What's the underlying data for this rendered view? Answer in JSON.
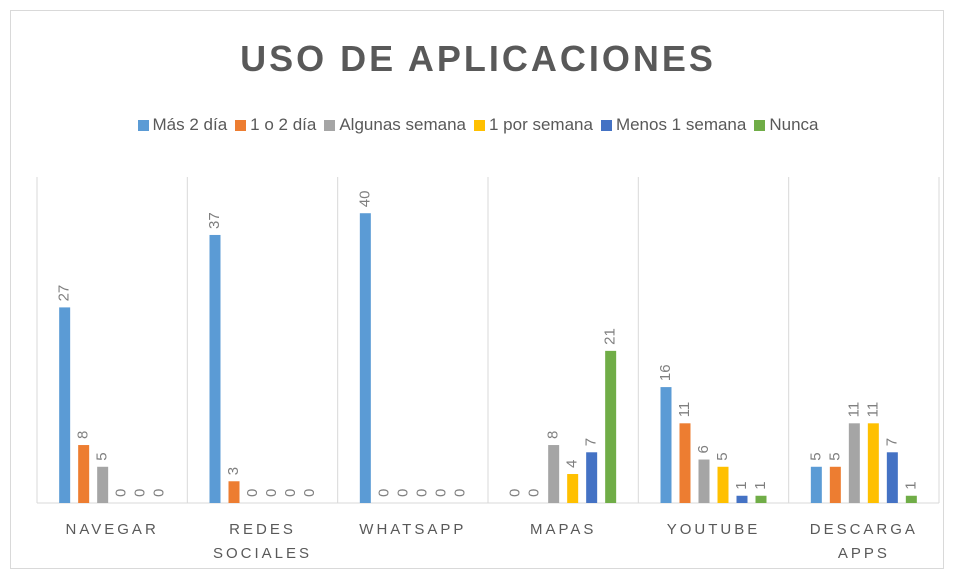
{
  "chart_data": {
    "type": "bar",
    "title": "USO DE APLICACIONES",
    "categories": [
      "NAVEGAR",
      "REDES SOCIALES",
      "WHATSAPP",
      "MAPAS",
      "YOUTUBE",
      "DESCARGA APPS"
    ],
    "series": [
      {
        "name": "Más 2 día",
        "color": "#5b9bd5",
        "values": [
          27,
          37,
          40,
          0,
          16,
          5
        ]
      },
      {
        "name": "1 o 2 día",
        "color": "#ed7d31",
        "values": [
          8,
          3,
          0,
          0,
          11,
          5
        ]
      },
      {
        "name": "Algunas semana",
        "color": "#a5a5a5",
        "values": [
          5,
          0,
          0,
          8,
          6,
          11
        ]
      },
      {
        "name": "1 por semana",
        "color": "#ffc000",
        "values": [
          0,
          0,
          0,
          4,
          5,
          11
        ]
      },
      {
        "name": "Menos 1 semana",
        "color": "#4472c4",
        "values": [
          0,
          0,
          0,
          7,
          1,
          7
        ]
      },
      {
        "name": "Nunca",
        "color": "#70ad47",
        "values": [
          0,
          0,
          0,
          21,
          1,
          1
        ]
      }
    ],
    "ylim": [
      0,
      45
    ],
    "legend": "top",
    "grid": true
  }
}
